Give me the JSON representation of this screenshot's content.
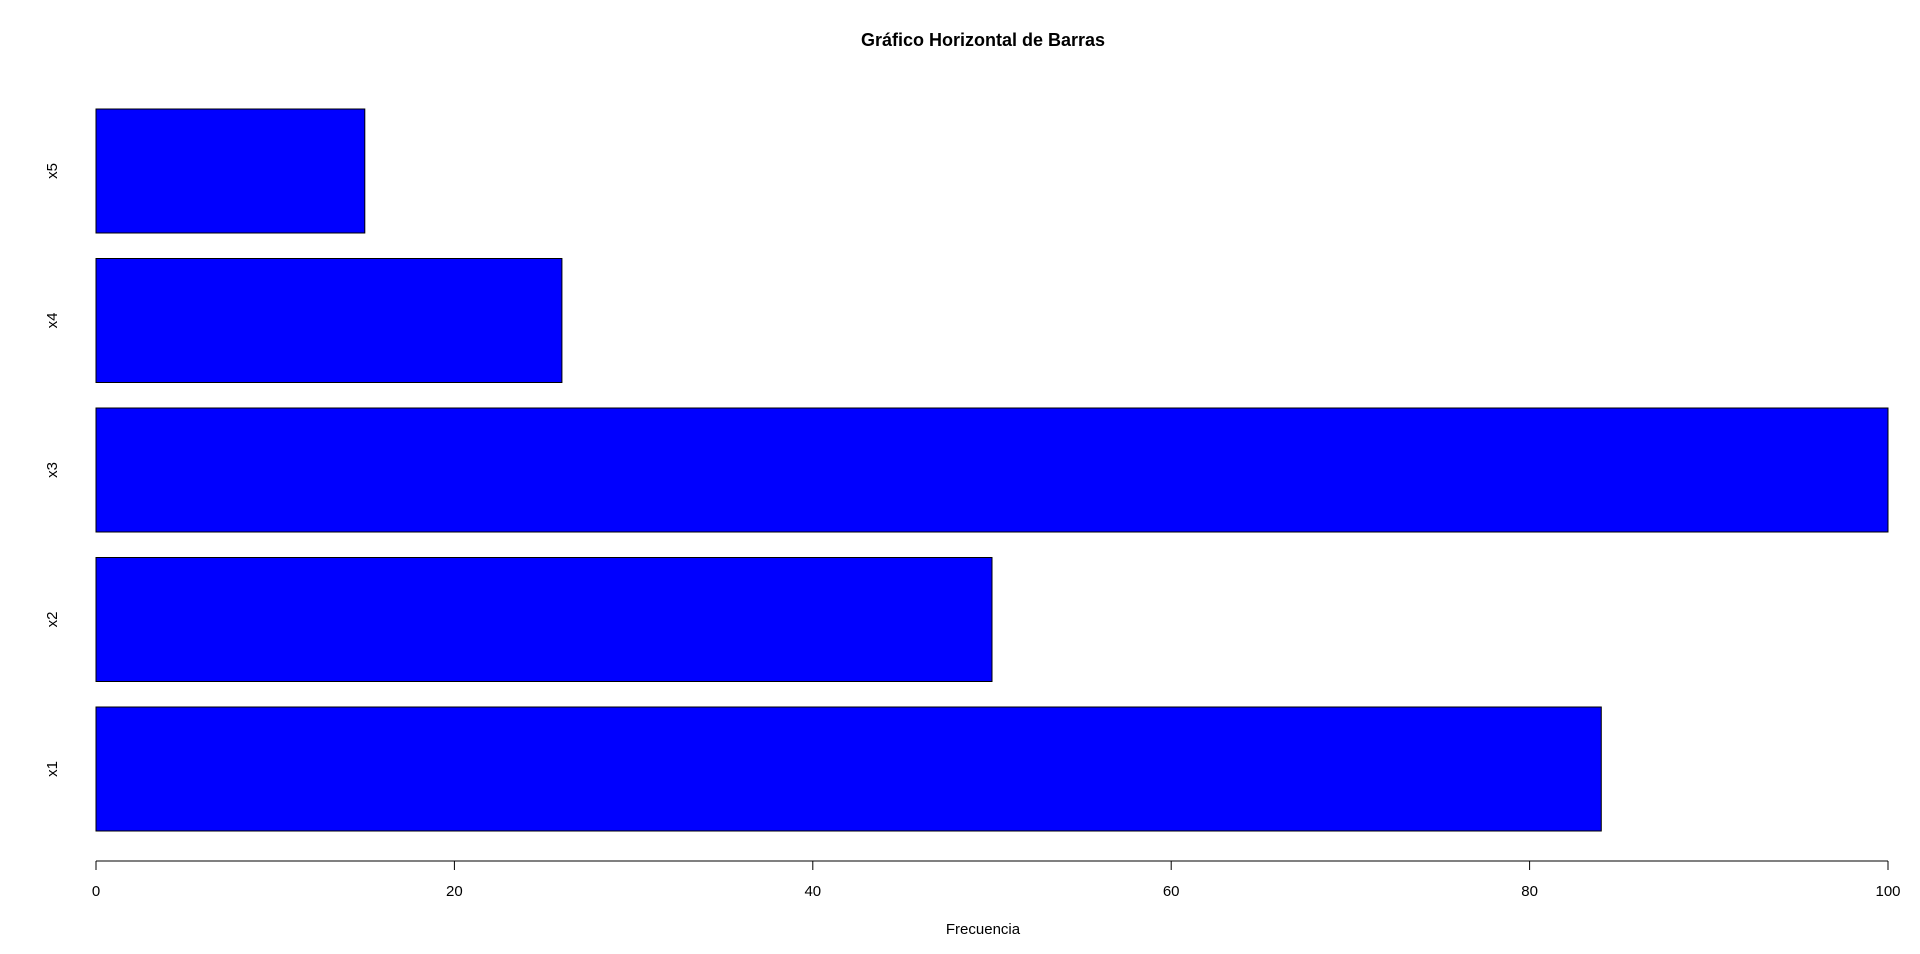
{
  "chart_data": {
    "type": "bar",
    "orientation": "horizontal",
    "title": "Gráfico Horizontal de Barras",
    "xlabel": "Frecuencia",
    "ylabel": "",
    "categories": [
      "x1",
      "x2",
      "x3",
      "x4",
      "x5"
    ],
    "values": [
      84,
      50,
      100,
      26,
      15
    ],
    "xlim": [
      0,
      100
    ],
    "xticks": [
      "0",
      "20",
      "40",
      "60",
      "80",
      "100"
    ],
    "bar_color": "#0000FF",
    "grid": false,
    "legend": "none"
  }
}
